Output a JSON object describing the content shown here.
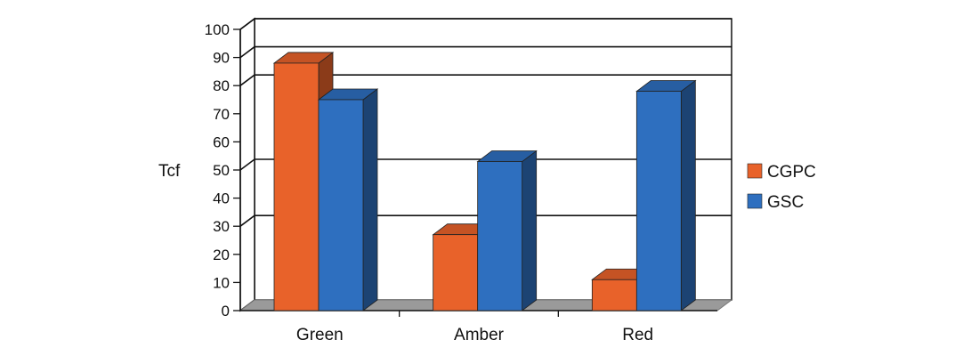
{
  "chart_data": {
    "type": "bar",
    "categories": [
      "Green",
      "Amber",
      "Red"
    ],
    "series": [
      {
        "name": "CGPC",
        "values": [
          88,
          27,
          11
        ],
        "color": "#e8622a"
      },
      {
        "name": "GSC",
        "values": [
          75,
          53,
          78
        ],
        "color": "#2e6fbf"
      }
    ],
    "ylabel": "Tcf",
    "ylim": [
      0,
      100
    ],
    "yticks": [
      0,
      10,
      20,
      30,
      40,
      50,
      60,
      70,
      80,
      90,
      100
    ],
    "gridlines": [
      0,
      30,
      50,
      80,
      90,
      100
    ],
    "legend_position": "right",
    "style": "3d-column"
  }
}
